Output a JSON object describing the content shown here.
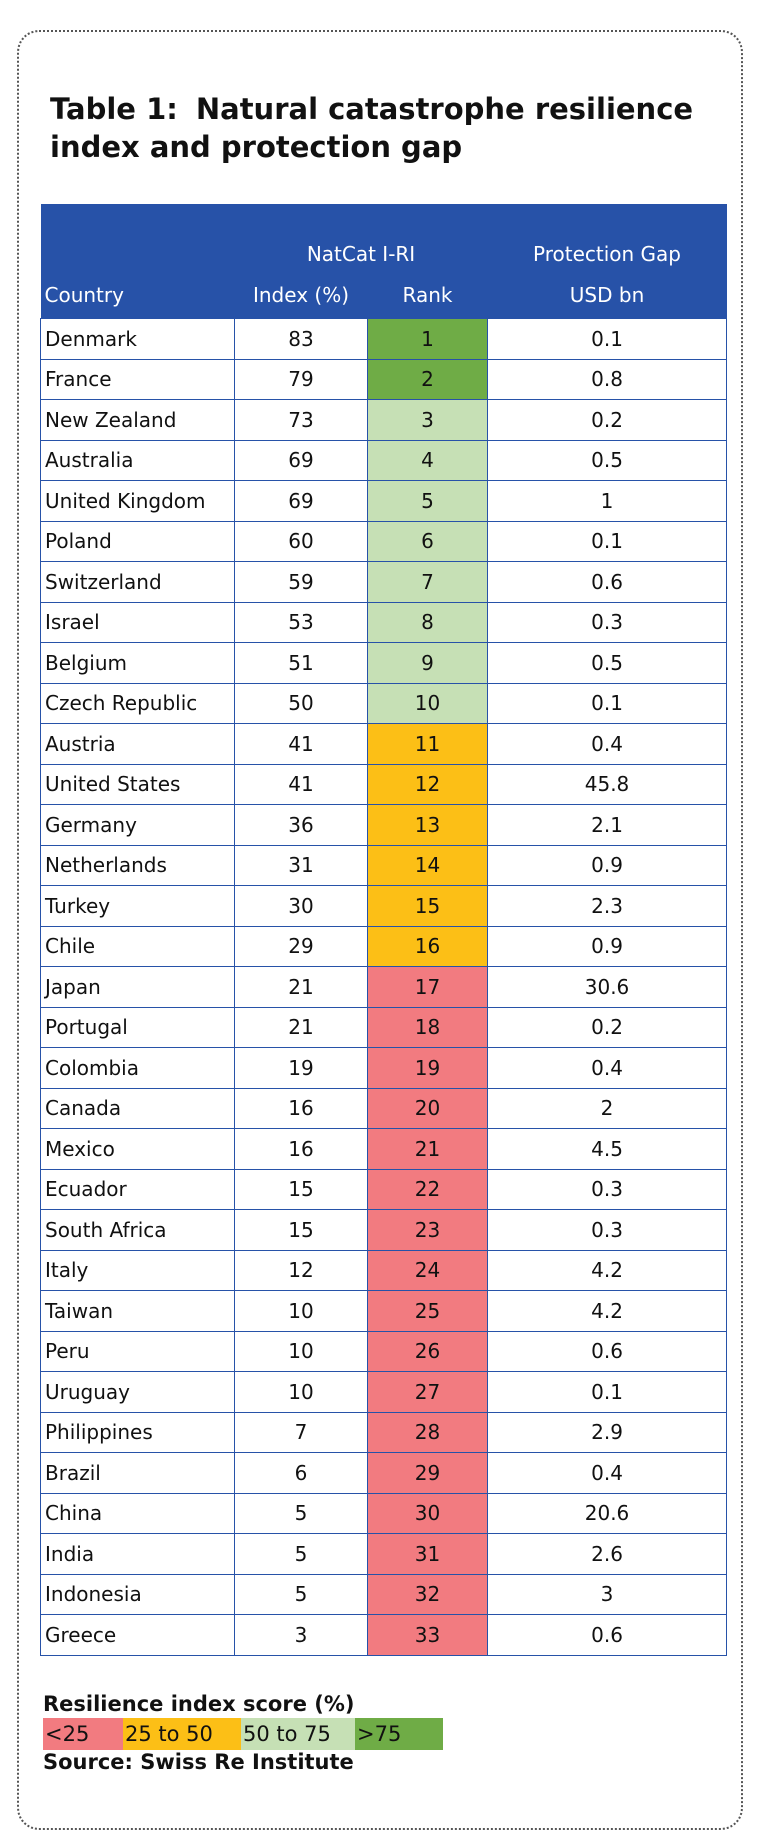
{
  "title": {
    "number": "Table 1:",
    "line1": "Natural catastrophe resilience",
    "line2": "index and protection gap"
  },
  "header": {
    "group_natcat": "NatCat I-RI",
    "group_gap": "Protection Gap",
    "col_country": "Country",
    "col_index": "Index (%)",
    "col_rank": "Rank",
    "col_gap": "USD bn"
  },
  "colors": {
    "header_bg": "#2752a8",
    "red": "#f27b80",
    "yellow": "#fcbf16",
    "lightgreen": "#c6e0b5",
    "green": "#6fac46"
  },
  "rows": [
    {
      "country": "Denmark",
      "index": "83",
      "rank": "1",
      "gap": "0.1",
      "band": "green"
    },
    {
      "country": "France",
      "index": "79",
      "rank": "2",
      "gap": "0.8",
      "band": "green"
    },
    {
      "country": "New Zealand",
      "index": "73",
      "rank": "3",
      "gap": "0.2",
      "band": "lightgreen"
    },
    {
      "country": "Australia",
      "index": "69",
      "rank": "4",
      "gap": "0.5",
      "band": "lightgreen"
    },
    {
      "country": "United Kingdom",
      "index": "69",
      "rank": "5",
      "gap": "1",
      "band": "lightgreen"
    },
    {
      "country": "Poland",
      "index": "60",
      "rank": "6",
      "gap": "0.1",
      "band": "lightgreen"
    },
    {
      "country": "Switzerland",
      "index": "59",
      "rank": "7",
      "gap": "0.6",
      "band": "lightgreen"
    },
    {
      "country": "Israel",
      "index": "53",
      "rank": "8",
      "gap": "0.3",
      "band": "lightgreen"
    },
    {
      "country": "Belgium",
      "index": "51",
      "rank": "9",
      "gap": "0.5",
      "band": "lightgreen"
    },
    {
      "country": "Czech Republic",
      "index": "50",
      "rank": "10",
      "gap": "0.1",
      "band": "lightgreen"
    },
    {
      "country": "Austria",
      "index": "41",
      "rank": "11",
      "gap": "0.4",
      "band": "yellow"
    },
    {
      "country": "United States",
      "index": "41",
      "rank": "12",
      "gap": "45.8",
      "band": "yellow"
    },
    {
      "country": "Germany",
      "index": "36",
      "rank": "13",
      "gap": "2.1",
      "band": "yellow"
    },
    {
      "country": "Netherlands",
      "index": "31",
      "rank": "14",
      "gap": "0.9",
      "band": "yellow"
    },
    {
      "country": "Turkey",
      "index": "30",
      "rank": "15",
      "gap": "2.3",
      "band": "yellow"
    },
    {
      "country": "Chile",
      "index": "29",
      "rank": "16",
      "gap": "0.9",
      "band": "yellow"
    },
    {
      "country": "Japan",
      "index": "21",
      "rank": "17",
      "gap": "30.6",
      "band": "red"
    },
    {
      "country": "Portugal",
      "index": "21",
      "rank": "18",
      "gap": "0.2",
      "band": "red"
    },
    {
      "country": "Colombia",
      "index": "19",
      "rank": "19",
      "gap": "0.4",
      "band": "red"
    },
    {
      "country": "Canada",
      "index": "16",
      "rank": "20",
      "gap": "2",
      "band": "red"
    },
    {
      "country": "Mexico",
      "index": "16",
      "rank": "21",
      "gap": "4.5",
      "band": "red"
    },
    {
      "country": "Ecuador",
      "index": "15",
      "rank": "22",
      "gap": "0.3",
      "band": "red"
    },
    {
      "country": "South Africa",
      "index": "15",
      "rank": "23",
      "gap": "0.3",
      "band": "red"
    },
    {
      "country": "Italy",
      "index": "12",
      "rank": "24",
      "gap": "4.2",
      "band": "red"
    },
    {
      "country": "Taiwan",
      "index": "10",
      "rank": "25",
      "gap": "4.2",
      "band": "red"
    },
    {
      "country": "Peru",
      "index": "10",
      "rank": "26",
      "gap": "0.6",
      "band": "red"
    },
    {
      "country": "Uruguay",
      "index": "10",
      "rank": "27",
      "gap": "0.1",
      "band": "red"
    },
    {
      "country": "Philippines",
      "index": "7",
      "rank": "28",
      "gap": "2.9",
      "band": "red"
    },
    {
      "country": "Brazil",
      "index": "6",
      "rank": "29",
      "gap": "0.4",
      "band": "red"
    },
    {
      "country": "China",
      "index": "5",
      "rank": "30",
      "gap": "20.6",
      "band": "red"
    },
    {
      "country": "India",
      "index": "5",
      "rank": "31",
      "gap": "2.6",
      "band": "red"
    },
    {
      "country": "Indonesia",
      "index": "5",
      "rank": "32",
      "gap": "3",
      "band": "red"
    },
    {
      "country": "Greece",
      "index": "3",
      "rank": "33",
      "gap": "0.6",
      "band": "red"
    }
  ],
  "legend": {
    "title": "Resilience index score (%)",
    "items": [
      {
        "label": "<25",
        "band": "red"
      },
      {
        "label": "25 to 50",
        "band": "yellow"
      },
      {
        "label": "50 to 75",
        "band": "lightgreen"
      },
      {
        "label": ">75",
        "band": "green"
      }
    ]
  },
  "source": "Source: Swiss Re Institute"
}
